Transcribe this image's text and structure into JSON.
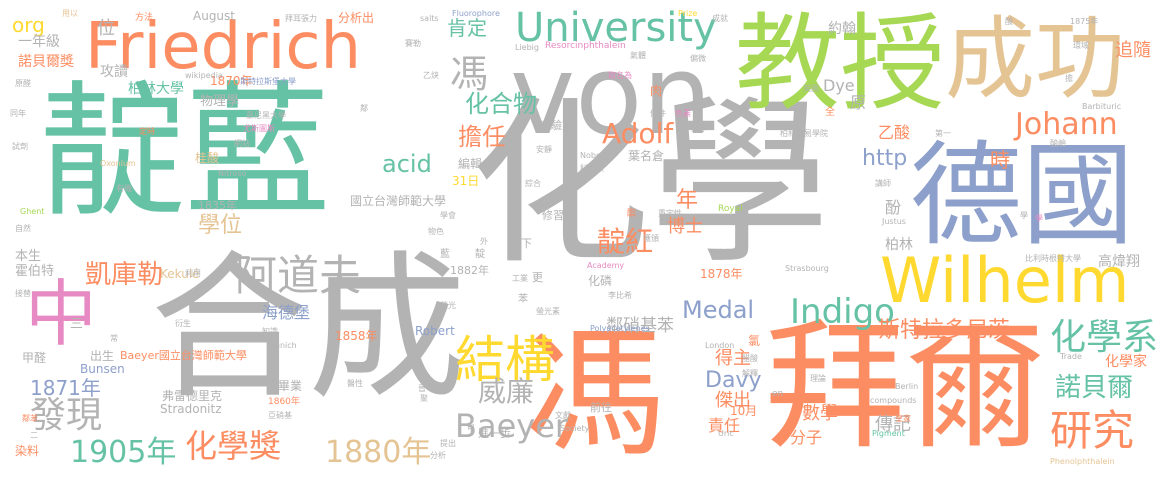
{
  "palette": {
    "green": "#66c2a5",
    "orange": "#fc8d62",
    "blue": "#8da0cb",
    "pink": "#e78ac3",
    "lime": "#a6d854",
    "yellow": "#ffd92f",
    "tan": "#e5c494",
    "gray": "#b3b3b3"
  },
  "words": [
    {
      "text": "化學",
      "color": "gray"
    },
    {
      "text": "靛藍",
      "color": "green"
    },
    {
      "text": "合成",
      "color": "gray"
    },
    {
      "text": "von",
      "color": "gray"
    },
    {
      "text": "馮",
      "color": "orange"
    },
    {
      "text": "拜爾",
      "color": "orange"
    },
    {
      "text": "教授",
      "color": "lime"
    },
    {
      "text": "德國",
      "color": "blue"
    },
    {
      "text": "成功",
      "color": "tan"
    },
    {
      "text": "Friedrich",
      "color": "orange"
    },
    {
      "text": "Wilhelm",
      "color": "yellow"
    },
    {
      "text": "University",
      "color": "green"
    },
    {
      "text": "結構",
      "color": "yellow"
    },
    {
      "text": "中",
      "color": "pink"
    },
    {
      "text": "研究",
      "color": "orange"
    },
    {
      "text": "阿道夫",
      "color": "gray"
    },
    {
      "text": "發現",
      "color": "gray"
    },
    {
      "text": "化學系",
      "color": "green"
    },
    {
      "text": "化學獎",
      "color": "orange"
    },
    {
      "text": "1905年",
      "color": "green"
    },
    {
      "text": "1880年",
      "color": "tan"
    },
    {
      "text": "Baeyer",
      "color": "gray"
    },
    {
      "text": "Indigo",
      "color": "green"
    },
    {
      "text": "Johann",
      "color": "orange"
    },
    {
      "text": "Adolf",
      "color": "orange"
    },
    {
      "text": "凱庫勒",
      "color": "orange"
    },
    {
      "text": "威廉",
      "color": "gray"
    },
    {
      "text": "靛紅",
      "color": "orange"
    },
    {
      "text": "諾貝爾",
      "color": "green"
    },
    {
      "text": "斯特拉多尼茨",
      "color": "orange"
    },
    {
      "text": "化合物",
      "color": "green"
    },
    {
      "text": "馮",
      "color": "gray"
    },
    {
      "text": "擔任",
      "color": "orange"
    },
    {
      "text": "Medal",
      "color": "blue"
    },
    {
      "text": "Davy",
      "color": "blue"
    },
    {
      "text": "學位",
      "color": "tan"
    },
    {
      "text": "1871年",
      "color": "blue"
    },
    {
      "text": "acid",
      "color": "green"
    },
    {
      "text": "http",
      "color": "blue"
    },
    {
      "text": "肯定",
      "color": "green"
    },
    {
      "text": "時",
      "color": "orange"
    },
    {
      "text": "海德堡",
      "color": "blue"
    },
    {
      "text": "化學家",
      "color": "orange"
    },
    {
      "text": "高煒翔",
      "color": "gray"
    },
    {
      "text": "柏林",
      "color": "gray"
    },
    {
      "text": "鄰硝基苯",
      "color": "gray"
    },
    {
      "text": "得主",
      "color": "orange"
    },
    {
      "text": "傑出",
      "color": "orange"
    },
    {
      "text": "數學",
      "color": "orange"
    },
    {
      "text": "傳記",
      "color": "gray"
    },
    {
      "text": "責任",
      "color": "orange"
    },
    {
      "text": "分子",
      "color": "orange"
    },
    {
      "text": "年",
      "color": "orange"
    },
    {
      "text": "博士",
      "color": "orange"
    },
    {
      "text": "酚",
      "color": "gray"
    },
    {
      "text": "原",
      "color": "gray"
    },
    {
      "text": "Dye",
      "color": "gray"
    },
    {
      "text": "乙酸",
      "color": "orange"
    },
    {
      "text": "約翰",
      "color": "gray"
    },
    {
      "text": "追隨",
      "color": "orange"
    },
    {
      "text": "org",
      "color": "yellow"
    },
    {
      "text": "位",
      "color": "gray"
    },
    {
      "text": "一年級",
      "color": "gray"
    },
    {
      "text": "諾貝爾獎",
      "color": "orange"
    },
    {
      "text": "攻讀",
      "color": "gray"
    },
    {
      "text": "柏林大學",
      "color": "green"
    },
    {
      "text": "1870年",
      "color": "orange"
    },
    {
      "text": "物理學",
      "color": "gray"
    },
    {
      "text": "桂酸",
      "color": "tan"
    },
    {
      "text": "1835年",
      "color": "gray"
    },
    {
      "text": "國立台灣師範大學",
      "color": "gray"
    },
    {
      "text": "31日",
      "color": "yellow"
    },
    {
      "text": "編輯",
      "color": "gray"
    },
    {
      "text": "實驗室",
      "color": "gray"
    },
    {
      "text": "葉名倉",
      "color": "gray"
    },
    {
      "text": "修習",
      "color": "gray"
    },
    {
      "text": "門下",
      "color": "gray"
    },
    {
      "text": "本生",
      "color": "gray"
    },
    {
      "text": "霍伯特",
      "color": "gray"
    },
    {
      "text": "Kekulé",
      "color": "tan"
    },
    {
      "text": "1882年",
      "color": "gray"
    },
    {
      "text": "三",
      "color": "gray"
    },
    {
      "text": "甲醛",
      "color": "gray"
    },
    {
      "text": "出生",
      "color": "gray"
    },
    {
      "text": "Baeyer國立台灣師範大學",
      "color": "orange"
    },
    {
      "text": "Bunsen",
      "color": "blue"
    },
    {
      "text": "弗雷德里克",
      "color": "gray"
    },
    {
      "text": "Stradonitz",
      "color": "gray"
    },
    {
      "text": "畢業",
      "color": "gray"
    },
    {
      "text": "1858年",
      "color": "orange"
    },
    {
      "text": "Robert",
      "color": "blue"
    },
    {
      "text": "化磷",
      "color": "gray"
    },
    {
      "text": "前往",
      "color": "gray"
    },
    {
      "text": "進一步",
      "color": "gray"
    },
    {
      "text": "染料",
      "color": "orange"
    },
    {
      "text": "10月",
      "color": "orange"
    },
    {
      "text": "1878年",
      "color": "orange"
    },
    {
      "text": "氯",
      "color": "orange"
    },
    {
      "text": "August",
      "color": "gray"
    },
    {
      "text": "分析出",
      "color": "orange"
    },
    {
      "text": "方法",
      "color": "orange"
    },
    {
      "text": "用以",
      "color": "tan"
    },
    {
      "text": "拜耳張力",
      "color": "gray"
    },
    {
      "text": "Fluorophore",
      "color": "blue"
    },
    {
      "text": "salts",
      "color": "gray"
    },
    {
      "text": "Prize",
      "color": "yellow"
    },
    {
      "text": "成就",
      "color": "gray"
    },
    {
      "text": "1875年",
      "color": "gray"
    },
    {
      "text": "環域",
      "color": "gray"
    },
    {
      "text": "氣體",
      "color": "gray"
    },
    {
      "text": "Liebig",
      "color": "gray"
    },
    {
      "text": "Resorcinphthalein",
      "color": "pink"
    },
    {
      "text": "wikipedia",
      "color": "gray"
    },
    {
      "text": "斯特拉斯堡大學",
      "color": "blue"
    },
    {
      "text": "慕尼黑大學",
      "color": "gray"
    },
    {
      "text": "尤斯圖斯",
      "color": "pink"
    },
    {
      "text": "乙炔",
      "color": "gray"
    },
    {
      "text": "取名為",
      "color": "pink"
    },
    {
      "text": "肉",
      "color": "orange"
    },
    {
      "text": "色素",
      "color": "pink"
    },
    {
      "text": "柏林貿易學院",
      "color": "gray"
    },
    {
      "text": "Barbituric",
      "color": "gray"
    },
    {
      "text": "第一",
      "color": "gray"
    },
    {
      "text": "酸鹼",
      "color": "gray"
    },
    {
      "text": "英國",
      "color": "gray"
    },
    {
      "text": "全",
      "color": "orange"
    },
    {
      "text": "Nobel",
      "color": "gray"
    },
    {
      "text": "科學家",
      "color": "gray"
    },
    {
      "text": "Royal",
      "color": "lime"
    },
    {
      "text": "Justus",
      "color": "gray"
    },
    {
      "text": "講師",
      "color": "gray"
    },
    {
      "text": "比利時根特大學",
      "color": "gray"
    },
    {
      "text": "Academy",
      "color": "pink"
    },
    {
      "text": "李比希",
      "color": "gray"
    },
    {
      "text": "工業",
      "color": "gray"
    },
    {
      "text": "苯",
      "color": "gray"
    },
    {
      "text": "更",
      "color": "gray"
    },
    {
      "text": "Strasbourg",
      "color": "gray"
    },
    {
      "text": "Polyacetylenes",
      "color": "blue"
    },
    {
      "text": "London",
      "color": "gray"
    },
    {
      "text": "Trade",
      "color": "gray"
    },
    {
      "text": "Berlin",
      "color": "gray"
    },
    {
      "text": "compounds",
      "color": "gray"
    },
    {
      "text": "Pigment",
      "color": "green"
    },
    {
      "text": "Phenolphthalein",
      "color": "tan"
    },
    {
      "text": "皇家",
      "color": "orange"
    },
    {
      "text": "Uric",
      "color": "gray"
    },
    {
      "text": "Society",
      "color": "gray"
    },
    {
      "text": "Munich",
      "color": "gray"
    },
    {
      "text": "Oxonium",
      "color": "tan"
    },
    {
      "text": "Nitroso",
      "color": "gray"
    },
    {
      "text": "Ghent",
      "color": "lime"
    },
    {
      "text": "自然",
      "color": "gray"
    },
    {
      "text": "試劑",
      "color": "gray"
    },
    {
      "text": "同年",
      "color": "gray"
    },
    {
      "text": "原醛",
      "color": "gray"
    },
    {
      "text": "接替",
      "color": "gray"
    },
    {
      "text": "鄰苯",
      "color": "orange"
    },
    {
      "text": "二",
      "color": "gray"
    },
    {
      "text": "分析",
      "color": "gray"
    },
    {
      "text": "1860年",
      "color": "orange"
    },
    {
      "text": "亞硝基",
      "color": "gray"
    },
    {
      "text": "醋酸",
      "color": "gray"
    },
    {
      "text": "知識",
      "color": "gray"
    },
    {
      "text": "衍生",
      "color": "gray"
    },
    {
      "text": "常",
      "color": "gray"
    },
    {
      "text": "利用",
      "color": "gray"
    },
    {
      "text": "螢光",
      "color": "gray"
    },
    {
      "text": "聚",
      "color": "gray"
    },
    {
      "text": "理論",
      "color": "gray"
    },
    {
      "text": "解釋",
      "color": "gray"
    },
    {
      "text": "提出",
      "color": "gray"
    },
    {
      "text": "文獻",
      "color": "gray"
    },
    {
      "text": "重定性",
      "color": "gray"
    },
    {
      "text": "靛",
      "color": "gray"
    },
    {
      "text": "藍",
      "color": "gray"
    },
    {
      "text": "外",
      "color": "gray"
    },
    {
      "text": "條件",
      "color": "gray"
    },
    {
      "text": "參考",
      "color": "gray"
    },
    {
      "text": "獲頒",
      "color": "gray"
    },
    {
      "text": "酯",
      "color": "orange"
    },
    {
      "text": "綜合",
      "color": "gray"
    },
    {
      "text": "溝",
      "color": "gray"
    },
    {
      "text": "安靜",
      "color": "gray"
    },
    {
      "text": "螢光素",
      "color": "gray"
    },
    {
      "text": "定時",
      "color": "orange"
    },
    {
      "text": "網站",
      "color": "gray"
    },
    {
      "text": "賽勒",
      "color": "gray"
    },
    {
      "text": "有機",
      "color": "gray"
    },
    {
      "text": "學會",
      "color": "gray"
    },
    {
      "text": "物色",
      "color": "gray"
    },
    {
      "text": "甲",
      "color": "gray"
    },
    {
      "text": "學",
      "color": "gray"
    },
    {
      "text": "擔",
      "color": "gray"
    },
    {
      "text": "醫性",
      "color": "gray"
    },
    {
      "text": "晉",
      "color": "gray"
    },
    {
      "text": "鄰",
      "color": "gray"
    },
    {
      "text": "偏微",
      "color": "gray"
    },
    {
      "text": "酸",
      "color": "gray"
    },
    {
      "text": "學",
      "color": "pink"
    },
    {
      "text": "en",
      "color": "gray"
    }
  ]
}
